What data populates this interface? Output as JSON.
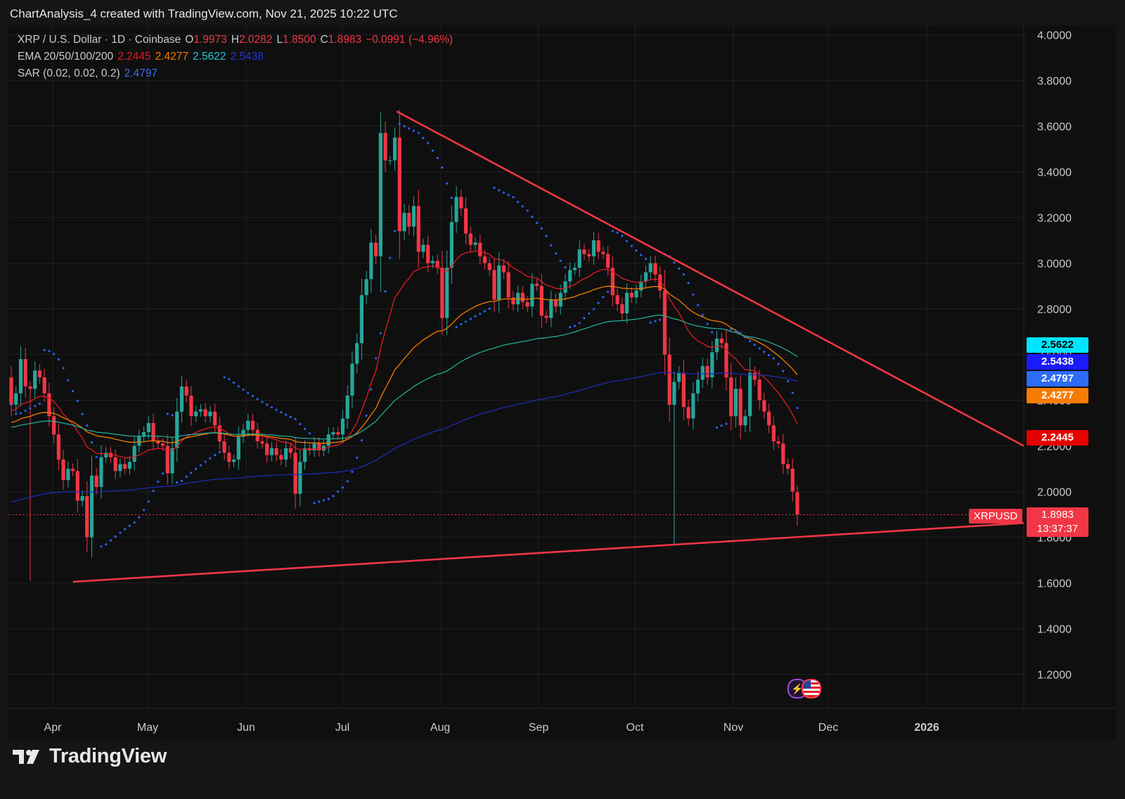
{
  "header": {
    "title": "ChartAnalysis_4 created with TradingView.com, Nov 21, 2025 10:22 UTC"
  },
  "legend": {
    "symbol": "XRP / U.S. Dollar · 1D · Coinbase",
    "o_label": "O",
    "o": "1.9973",
    "h_label": "H",
    "h": "2.0282",
    "l_label": "L",
    "l": "1.8500",
    "c_label": "C",
    "c": "1.8983",
    "change": "−0.0991 (−4.96%)",
    "ema_label": "EMA 20/50/100/200",
    "ema20": "2.2445",
    "ema50": "2.4277",
    "ema100": "2.5622",
    "ema200": "2.5438",
    "sar_label": "SAR (0.02, 0.02, 0.2)",
    "sar": "2.4797"
  },
  "colors": {
    "background": "#0f0f0f",
    "bull": "#26a69a",
    "bear": "#f23645",
    "ema20": "#e11b22",
    "ema50": "#f57c00",
    "ema100": "#22ab94",
    "ema200": "#1d2bb5",
    "sar": "#2962ff",
    "trendline": "#f23645"
  },
  "price_tags": [
    {
      "value": "2.5622",
      "bg": "#00e5ff",
      "fg": "#000000"
    },
    {
      "value": "2.5438",
      "bg": "#1a1aff",
      "fg": "#ffffff"
    },
    {
      "value": "2.4797",
      "bg": "#2d6cf5",
      "fg": "#ffffff"
    },
    {
      "value": "2.4277",
      "bg": "#f57c00",
      "fg": "#ffffff"
    },
    {
      "value": "2.2445",
      "bg": "#e60000",
      "fg": "#ffffff"
    }
  ],
  "last_price": {
    "symbol": "XRPUSD",
    "value": "1.8983",
    "countdown": "13:37:37",
    "bg": "#f23645"
  },
  "brand": {
    "name": "TradingView"
  },
  "chart_data": {
    "type": "candlestick",
    "symbol": "XRP / U.S. Dollar",
    "timeframe": "1D",
    "exchange": "Coinbase",
    "y_ticks": [
      "1.2000",
      "1.4000",
      "1.6000",
      "1.8000",
      "2.0000",
      "2.2000",
      "2.4000",
      "2.6000",
      "2.8000",
      "3.0000",
      "3.2000",
      "3.4000",
      "3.6000",
      "3.8000",
      "4.0000"
    ],
    "y_range": [
      1.1,
      4.05
    ],
    "x_ticks": [
      "Apr",
      "May",
      "Jun",
      "Jul",
      "Aug",
      "Sep",
      "Oct",
      "Nov",
      "Dec",
      "2026"
    ],
    "grid": true,
    "ohlc_last": {
      "open": 1.9973,
      "high": 2.0282,
      "low": 1.85,
      "close": 1.8983,
      "change": -0.0991,
      "change_pct": -4.96
    },
    "ema": {
      "ema20": 2.2445,
      "ema50": 2.4277,
      "ema100": 2.5622,
      "ema200": 2.5438
    },
    "sar": 2.4797,
    "series": [
      {
        "name": "XRP close",
        "values": [
          2.38,
          2.43,
          2.58,
          2.46,
          2.45,
          2.53,
          2.5,
          2.43,
          2.33,
          2.25,
          2.14,
          2.05,
          2.1,
          2.09,
          1.96,
          1.98,
          1.8,
          2.07,
          2.02,
          2.15,
          2.17,
          2.15,
          2.09,
          2.12,
          2.1,
          2.13,
          2.2,
          2.24,
          2.26,
          2.3,
          2.22,
          2.21,
          2.2,
          2.08,
          2.19,
          2.35,
          2.46,
          2.42,
          2.33,
          2.35,
          2.36,
          2.33,
          2.35,
          2.29,
          2.22,
          2.17,
          2.13,
          2.14,
          2.24,
          2.27,
          2.31,
          2.27,
          2.22,
          2.21,
          2.16,
          2.19,
          2.16,
          2.14,
          2.19,
          2.17,
          1.99,
          2.13,
          2.19,
          2.18,
          2.21,
          2.18,
          2.2,
          2.25,
          2.26,
          2.25,
          2.32,
          2.42,
          2.56,
          2.65,
          2.86,
          2.93,
          3.09,
          3.03,
          3.57,
          3.45,
          3.45,
          3.55,
          3.14,
          3.22,
          3.16,
          3.25,
          3.05,
          3.08,
          3.0,
          3.01,
          2.98,
          2.76,
          2.98,
          3.18,
          3.29,
          3.24,
          3.13,
          3.08,
          3.09,
          3.03,
          3.0,
          2.97,
          2.84,
          2.99,
          2.96,
          2.85,
          2.82,
          2.87,
          2.83,
          2.81,
          2.91,
          2.9,
          2.77,
          2.76,
          2.84,
          2.81,
          2.87,
          2.92,
          2.97,
          2.98,
          3.06,
          3.04,
          3.03,
          3.1,
          3.05,
          3.04,
          2.98,
          2.86,
          2.82,
          2.78,
          2.87,
          2.85,
          2.88,
          2.92,
          2.96,
          3.0,
          2.95,
          2.88,
          2.6,
          2.38,
          2.48,
          2.52,
          2.37,
          2.32,
          2.43,
          2.49,
          2.55,
          2.5,
          2.61,
          2.67,
          2.65,
          2.5,
          2.33,
          2.45,
          2.29,
          2.33,
          2.52,
          2.49,
          2.4,
          2.35,
          2.29,
          2.22,
          2.21,
          2.12,
          2.1,
          2.0,
          1.9
        ]
      }
    ],
    "trendlines": [
      {
        "name": "descending resistance",
        "from": {
          "date": "Jul 18",
          "price": 3.66
        },
        "to": {
          "date": "Jan 2026",
          "price": 2.2
        }
      },
      {
        "name": "ascending support",
        "from": {
          "date": "Apr 7",
          "price": 1.61
        },
        "to": {
          "date": "Jan 2026",
          "price": 1.86
        }
      }
    ]
  }
}
